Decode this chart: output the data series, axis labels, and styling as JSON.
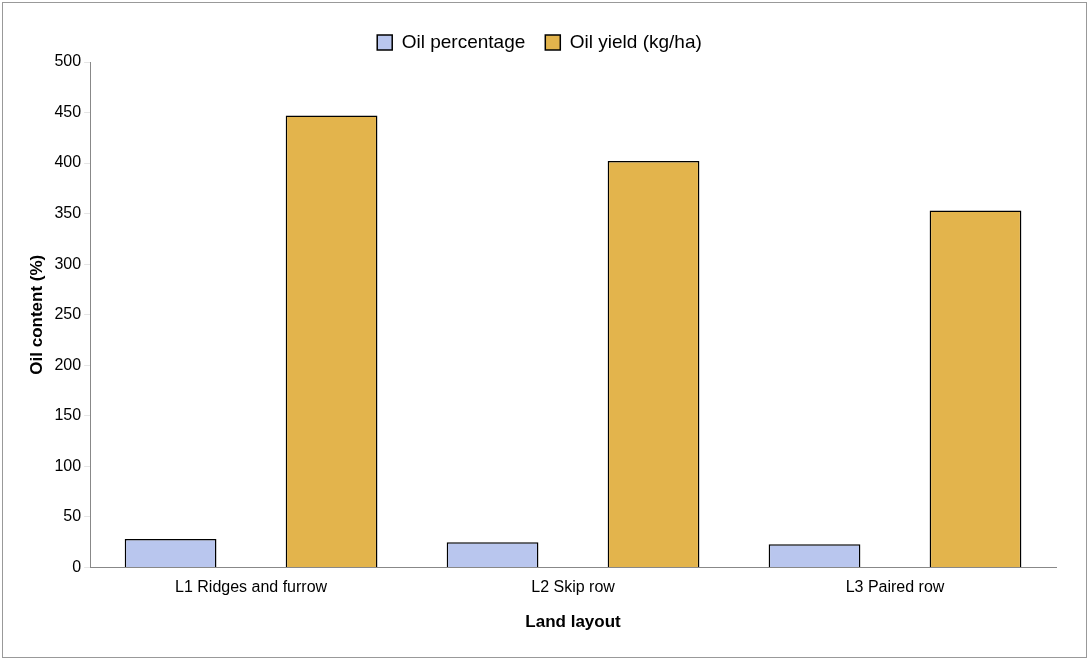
{
  "chart_data": {
    "type": "bar",
    "xlabel": "Land layout",
    "ylabel": "Oil content (%)",
    "categories": [
      "L1 Ridges and furrow",
      "L2 Skip row",
      "L3 Paired row"
    ],
    "series": [
      {
        "name": "Oil percentage",
        "color": "#b9c6ee",
        "values": [
          28,
          25,
          23
        ]
      },
      {
        "name": "Oil yield (kg/ha)",
        "color": "#e3b44c",
        "values": [
          447,
          402,
          353
        ]
      }
    ],
    "ylim": [
      0,
      500
    ],
    "yticks": [
      0,
      50,
      100,
      150,
      200,
      250,
      300,
      350,
      400,
      450,
      500
    ],
    "grid": false,
    "legend": "top"
  }
}
